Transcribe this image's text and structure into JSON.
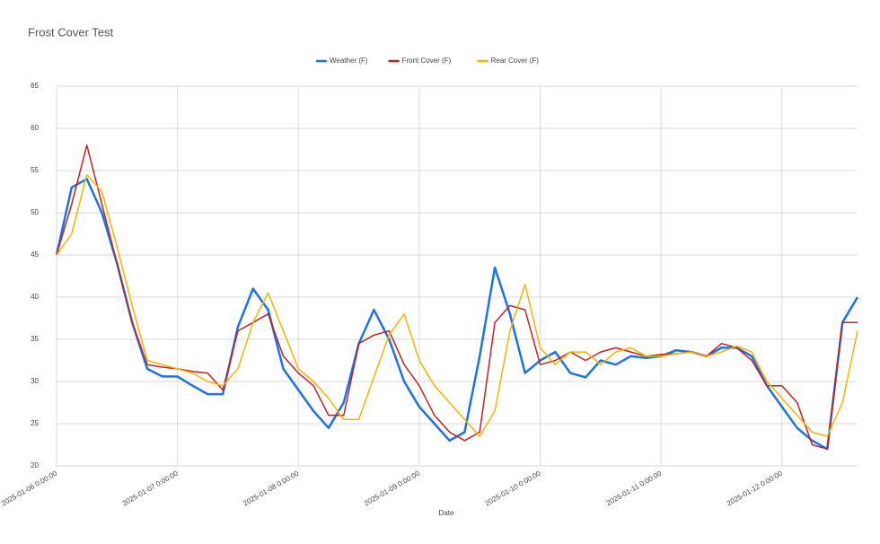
{
  "chart_data": {
    "type": "line",
    "title": "Frost Cover Test",
    "x_label": "Date",
    "x": [
      "2025-01-06 0:00:00",
      "2025-01-06 3:00:00",
      "2025-01-06 6:00:00",
      "2025-01-06 9:00:00",
      "2025-01-06 12:00:00",
      "2025-01-06 15:00:00",
      "2025-01-06 18:00:00",
      "2025-01-06 21:00:00",
      "2025-01-07 0:00:00",
      "2025-01-07 3:00:00",
      "2025-01-07 6:00:00",
      "2025-01-07 9:00:00",
      "2025-01-07 12:00:00",
      "2025-01-07 15:00:00",
      "2025-01-07 18:00:00",
      "2025-01-07 21:00:00",
      "2025-01-08 0:00:00",
      "2025-01-08 3:00:00",
      "2025-01-08 6:00:00",
      "2025-01-08 9:00:00",
      "2025-01-08 12:00:00",
      "2025-01-08 15:00:00",
      "2025-01-08 18:00:00",
      "2025-01-08 21:00:00",
      "2025-01-09 0:00:00",
      "2025-01-09 3:00:00",
      "2025-01-09 6:00:00",
      "2025-01-09 9:00:00",
      "2025-01-09 12:00:00",
      "2025-01-09 15:00:00",
      "2025-01-09 18:00:00",
      "2025-01-09 21:00:00",
      "2025-01-10 0:00:00",
      "2025-01-10 3:00:00",
      "2025-01-10 6:00:00",
      "2025-01-10 9:00:00",
      "2025-01-10 12:00:00",
      "2025-01-10 15:00:00",
      "2025-01-10 18:00:00",
      "2025-01-10 21:00:00",
      "2025-01-11 0:00:00",
      "2025-01-11 3:00:00",
      "2025-01-11 6:00:00",
      "2025-01-11 9:00:00",
      "2025-01-11 12:00:00",
      "2025-01-11 15:00:00",
      "2025-01-11 18:00:00",
      "2025-01-11 21:00:00",
      "2025-01-12 0:00:00",
      "2025-01-12 3:00:00",
      "2025-01-12 6:00:00",
      "2025-01-12 9:00:00",
      "2025-01-12 12:00:00",
      "2025-01-12 15:00:00"
    ],
    "series": [
      {
        "name": "Weather (F)",
        "color": "#1a73e8",
        "values": [
          45,
          53,
          54,
          50,
          44,
          37,
          31.5,
          30.6,
          30.6,
          29.5,
          28.5,
          28.5,
          36.5,
          41,
          38.5,
          31.5,
          29,
          26.5,
          24.5,
          27.5,
          34.5,
          38.5,
          35,
          30,
          27,
          25,
          23,
          24,
          33,
          43.5,
          38,
          31,
          32.5,
          33.5,
          31,
          30.5,
          32.5,
          32,
          33,
          32.8,
          33,
          33.7,
          33.5,
          33,
          34,
          34,
          33,
          29.5,
          27,
          24.5,
          23,
          22,
          37,
          40
        ]
      },
      {
        "name": "Front Cover (F)",
        "color": "#c5221f",
        "values": [
          45,
          51,
          58,
          51,
          44,
          37,
          32,
          31.7,
          31.5,
          31.2,
          31,
          29,
          36,
          37,
          38,
          33,
          31,
          29.5,
          26,
          26,
          34.5,
          35.5,
          36,
          32,
          29.5,
          26,
          24,
          23,
          24,
          37,
          39,
          38.5,
          32,
          32.5,
          33.5,
          32.5,
          33.5,
          34,
          33.5,
          33,
          33.2,
          33.3,
          33.5,
          33,
          34.5,
          34,
          32.5,
          29.5,
          29.5,
          27.5,
          22.5,
          22,
          37,
          37
        ]
      },
      {
        "name": "Rear Cover (F)",
        "color": "#f4b400",
        "values": [
          45,
          47.5,
          54.5,
          52.5,
          46,
          39,
          32.5,
          32,
          31.5,
          31,
          30,
          29.5,
          31.5,
          37,
          40.5,
          36,
          31.5,
          30,
          28,
          25.5,
          25.5,
          30.5,
          35.5,
          38,
          32.5,
          29.5,
          27.5,
          25.5,
          23.5,
          26.5,
          36,
          41.5,
          34,
          32,
          33.5,
          33.5,
          32,
          33.5,
          34,
          33,
          33,
          33.3,
          33.5,
          33,
          33.5,
          34.2,
          33.5,
          30,
          28,
          26,
          24,
          23.5,
          27.5,
          36
        ]
      }
    ],
    "xlim": [
      "2025-01-06 0:00:00",
      "2025-01-12 15:00:00"
    ],
    "xticks": [
      "2025-01-06 0:00:00",
      "2025-01-07 0:00:00",
      "2025-01-08 0:00:00",
      "2025-01-09 0:00:00",
      "2025-01-10 0:00:00",
      "2025-01-11 0:00:00",
      "2025-01-12 0:00:00"
    ],
    "ylim": [
      20,
      65
    ],
    "yticks": [
      20,
      25,
      30,
      35,
      40,
      45,
      50,
      55,
      60,
      65
    ],
    "grid": true,
    "legend": "top"
  }
}
